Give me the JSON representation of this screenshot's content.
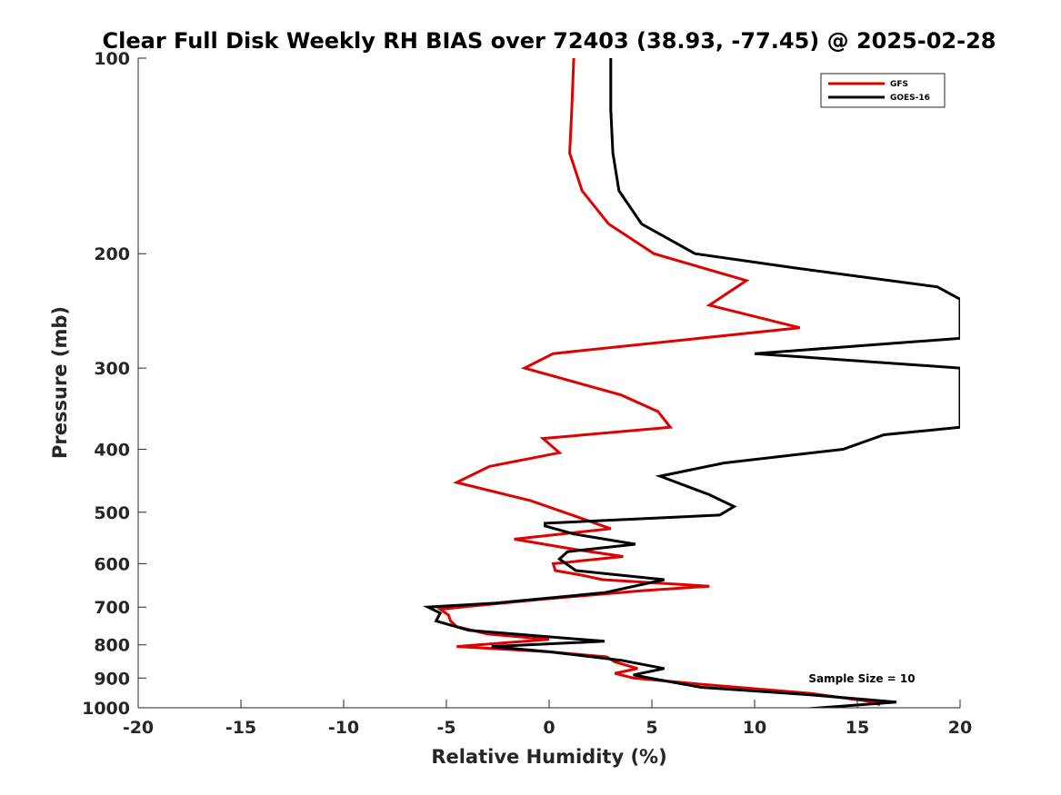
{
  "chart_data": {
    "type": "line",
    "title": "Clear Full Disk Weekly RH BIAS over 72403 (38.93, -77.45) @ 2025-02-28",
    "xlabel": "Relative Humidity (%)",
    "ylabel": "Pressure (mb)",
    "xlim": [
      -20,
      20
    ],
    "ylim": [
      100,
      1000
    ],
    "y_scale": "log",
    "y_reversed": true,
    "x_ticks": [
      -20,
      -15,
      -10,
      -5,
      0,
      5,
      10,
      15,
      20
    ],
    "x_tick_labels": [
      "-20",
      "-15",
      "-10",
      "-5",
      "0",
      "5",
      "10",
      "15",
      "20"
    ],
    "y_ticks": [
      100,
      200,
      300,
      400,
      500,
      600,
      700,
      800,
      900,
      1000
    ],
    "y_tick_labels": [
      "100",
      "200",
      "300",
      "400",
      "500",
      "600",
      "700",
      "800",
      "900",
      "1000"
    ],
    "grid": false,
    "legend_position": "top-right",
    "annotation": "Sample Size = 10",
    "series": [
      {
        "name": "GFS",
        "color": "#e00000",
        "x": [
          1.2,
          1.1,
          1.0,
          1.6,
          2.9,
          5.1,
          9.6,
          7.8,
          12.2,
          0.2,
          -1.2,
          3.5,
          5.3,
          5.9,
          -0.3,
          0.5,
          -2.9,
          -4.5,
          -0.9,
          1.5,
          3.0,
          -1.7,
          1.2,
          3.6,
          0.2,
          0.3,
          1.6,
          2.6,
          7.8,
          4.6,
          -0.2,
          -5.3,
          -4.9,
          -4.8,
          -4.5,
          -3.0,
          0.0,
          -4.5,
          0.0,
          2.8,
          3.2,
          4.3,
          3.2,
          4.1,
          7.4,
          12.7,
          15.8,
          16.1
        ],
        "y": [
          100,
          120,
          140,
          160,
          180,
          200,
          220,
          240,
          260,
          285,
          300,
          330,
          350,
          370,
          385,
          405,
          425,
          450,
          480,
          510,
          530,
          550,
          570,
          585,
          600,
          615,
          625,
          635,
          650,
          660,
          680,
          705,
          720,
          735,
          750,
          770,
          785,
          805,
          820,
          835,
          850,
          870,
          885,
          900,
          920,
          950,
          980,
          990
        ]
      },
      {
        "name": "GOES-16",
        "color": "#000000",
        "x": [
          3.0,
          3.0,
          3.1,
          3.4,
          4.5,
          7.1,
          11.8,
          18.9,
          20.0,
          20.0,
          10.0,
          20.0,
          20.0,
          20.0,
          16.3,
          14.3,
          8.5,
          5.4,
          7.8,
          9.0,
          8.3,
          -0.2,
          -0.2,
          1.2,
          4.2,
          0.9,
          0.5,
          1.3,
          5.6,
          2.7,
          -2.6,
          -5.9,
          -5.3,
          -5.5,
          -3.9,
          2.7,
          -2.8,
          0.0,
          3.5,
          5.6,
          4.1,
          5.3,
          7.4,
          12.7,
          16.9,
          12.3
        ],
        "y": [
          100,
          120,
          140,
          160,
          180,
          200,
          210,
          225,
          235,
          270,
          285,
          300,
          310,
          370,
          380,
          400,
          420,
          440,
          470,
          490,
          505,
          520,
          525,
          540,
          560,
          575,
          590,
          615,
          635,
          665,
          690,
          700,
          715,
          735,
          760,
          790,
          805,
          820,
          845,
          870,
          890,
          905,
          930,
          955,
          980,
          1005
        ]
      }
    ]
  }
}
